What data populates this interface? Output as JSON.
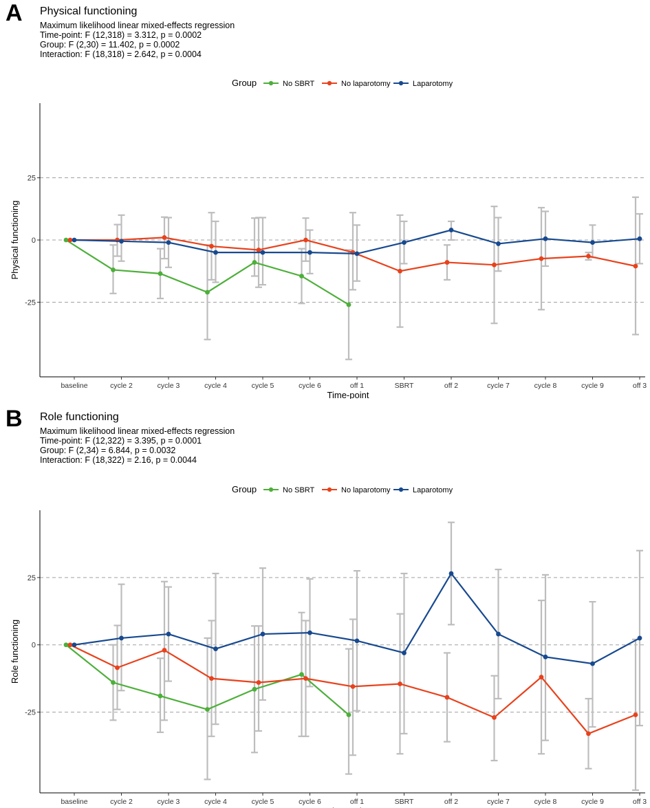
{
  "chart_data": [
    {
      "type": "line",
      "panel_label": "A",
      "title": "Physical functioning",
      "subtitle": [
        "Maximum likelihood linear mixed-effects regression",
        "Time-point: F (12,318) = 3.312, p = 0.0002",
        "Group: F (2,30) = 11.402, p = 0.0002",
        "Interaction: F (18,318) = 2.642, p = 0.0004"
      ],
      "xlabel": "Time-point",
      "ylabel": "Physical functioning",
      "legend_title": "Group",
      "legend_position": "top",
      "categories": [
        "baseline",
        "cycle 2",
        "cycle 3",
        "cycle 4",
        "cycle 5",
        "cycle 6",
        "off 1",
        "SBRT",
        "off 2",
        "cycle 7",
        "cycle 8",
        "cycle 9",
        "off 3"
      ],
      "yticks": [
        -25,
        0,
        25
      ],
      "ytick_labels": [
        "-25",
        "0",
        "25"
      ],
      "ylim": [
        -55,
        55
      ],
      "grid": "horizontal dashed at ticks",
      "series": [
        {
          "name": "No SBRT",
          "color": "#4daf3a",
          "values": [
            0,
            -12,
            -13.5,
            -21,
            -9,
            -14.5,
            -26,
            null,
            null,
            null,
            null,
            null,
            null
          ],
          "err_low": [
            0,
            -21.5,
            -23.5,
            -40,
            -14.5,
            -25.5,
            -48,
            null,
            null,
            null,
            null,
            null,
            null
          ],
          "err_high": [
            0,
            -2,
            -3.5,
            -2,
            8.8,
            -3.5,
            -4,
            null,
            null,
            null,
            null,
            null,
            null
          ]
        },
        {
          "name": "No laparotomy",
          "color": "#e8421c",
          "values": [
            0,
            0,
            1,
            -2.5,
            -4,
            0,
            -5,
            -12.5,
            -9,
            -10,
            -7.5,
            -6.5,
            -10.5
          ],
          "err_low": [
            0,
            -6.5,
            -7.5,
            -16,
            -19,
            -8.5,
            -20,
            -35,
            -16,
            -33.5,
            -28,
            -8,
            -38
          ],
          "err_high": [
            0,
            6.2,
            9.2,
            11,
            9,
            8.8,
            11,
            10,
            -2,
            13.5,
            13,
            -5,
            17.2
          ]
        },
        {
          "name": "Laparotomy",
          "color": "#17498f",
          "values": [
            0,
            -0.5,
            -1,
            -5,
            -5,
            -5,
            -5.5,
            -1,
            4,
            -1.5,
            0.5,
            -1,
            0.5
          ],
          "err_low": [
            0,
            -8.5,
            -11,
            -17,
            -18,
            -13.5,
            -16.5,
            -9.5,
            0,
            -12.5,
            -10.5,
            -7,
            -9.5
          ],
          "err_high": [
            0,
            10,
            9,
            7.5,
            9,
            4,
            6,
            7.5,
            7.5,
            9,
            11.5,
            6,
            10.5
          ]
        }
      ]
    },
    {
      "type": "line",
      "panel_label": "B",
      "title": "Role functioning",
      "subtitle": [
        "Maximum likelihood linear mixed-effects regression",
        "Time-point: F (12,322) = 3.395, p = 0.0001",
        "Group: F (2,34) = 6.844, p = 0.0032",
        "Interaction: F (18,322) = 2.16, p = 0.0044"
      ],
      "xlabel": "Time-point",
      "ylabel": "Role functioning",
      "legend_title": "Group",
      "legend_position": "top",
      "categories": [
        "baseline",
        "cycle 2",
        "cycle 3",
        "cycle 4",
        "cycle 5",
        "cycle 6",
        "off 1",
        "SBRT",
        "off 2",
        "cycle 7",
        "cycle 8",
        "cycle 9",
        "off 3"
      ],
      "yticks": [
        -25,
        0,
        25
      ],
      "ytick_labels": [
        "-25",
        "0",
        "25"
      ],
      "ylim": [
        -55,
        50
      ],
      "grid": "horizontal dashed at ticks",
      "series": [
        {
          "name": "No SBRT",
          "color": "#4daf3a",
          "values": [
            0,
            -14,
            -19,
            -24,
            -16.5,
            -11,
            -26,
            null,
            null,
            null,
            null,
            null,
            null
          ],
          "err_low": [
            0,
            -28,
            -32.5,
            -50,
            -40,
            -34,
            -48,
            null,
            null,
            null,
            null,
            null,
            null
          ],
          "err_high": [
            0,
            0,
            -5,
            2.5,
            7,
            12,
            -1.5,
            null,
            null,
            null,
            null,
            null,
            null
          ]
        },
        {
          "name": "No laparotomy",
          "color": "#e8421c",
          "values": [
            0,
            -8.5,
            -2,
            -12.5,
            -14,
            -12.5,
            -15.5,
            -14.5,
            -19.5,
            -27,
            -12,
            -33,
            -26
          ],
          "err_low": [
            0,
            -24,
            -28,
            -34,
            -32,
            -34,
            -41,
            -40.5,
            -36,
            -43,
            -40.5,
            -46,
            -54
          ],
          "err_high": [
            0,
            7.2,
            23.5,
            9,
            7,
            9,
            9.5,
            11.5,
            -3,
            -11.5,
            16.5,
            -20,
            2
          ]
        },
        {
          "name": "Laparotomy",
          "color": "#17498f",
          "values": [
            0,
            2.5,
            4,
            -1.5,
            4,
            4.5,
            1.5,
            -3,
            26.5,
            4,
            -4.5,
            -7,
            2.5
          ],
          "err_low": [
            0,
            -17,
            -13.5,
            -29.5,
            -20.5,
            -15.5,
            -24.5,
            -33,
            7.5,
            -20,
            -35.5,
            -30.5,
            -30
          ],
          "err_high": [
            0,
            22.5,
            21.5,
            26.5,
            28.5,
            24.5,
            27.5,
            26.5,
            45.5,
            28,
            26,
            16,
            35
          ]
        }
      ]
    }
  ]
}
